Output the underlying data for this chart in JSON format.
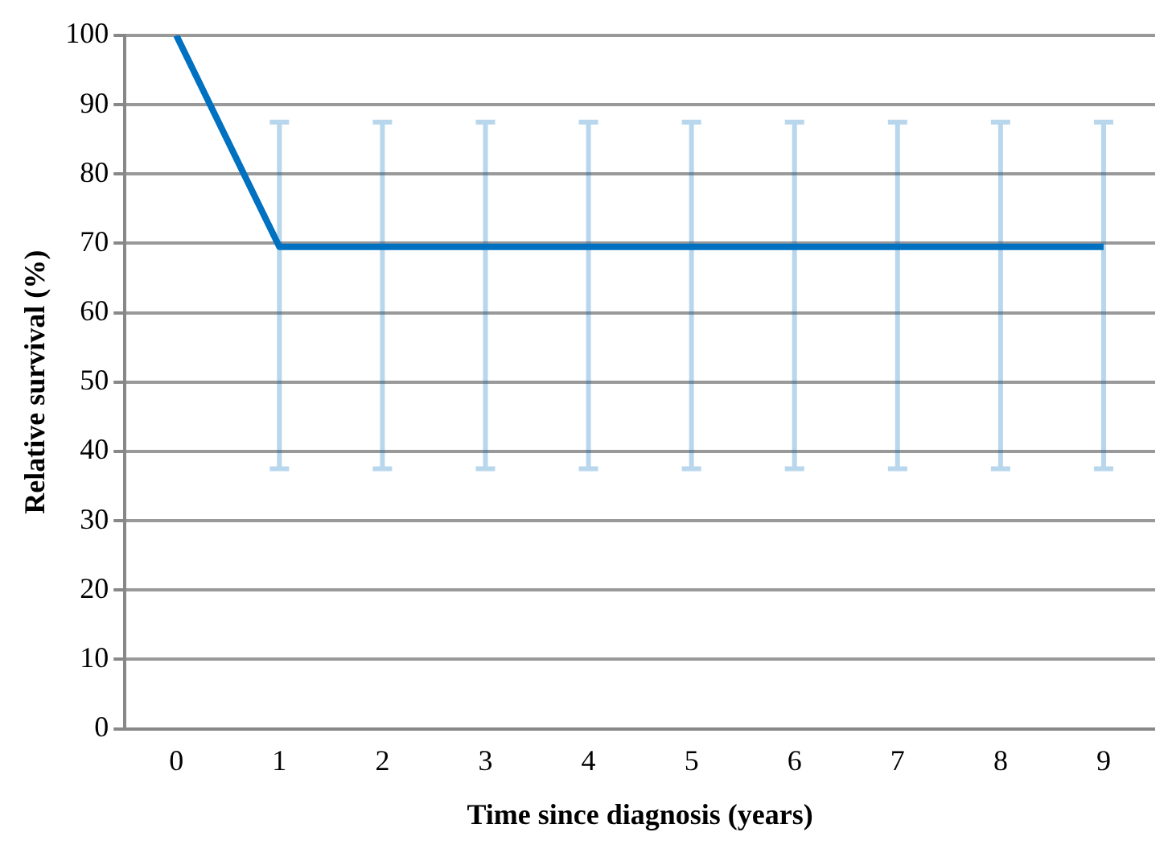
{
  "chart_data": {
    "type": "line",
    "xlabel": "Time since diagnosis (years)",
    "ylabel": "Relative survival (%)",
    "categories": [
      "0",
      "1",
      "2",
      "3",
      "4",
      "5",
      "6",
      "7",
      "8",
      "9"
    ],
    "series": [
      {
        "color": "#0070c0",
        "values": [
          100,
          69.5,
          69.5,
          69.5,
          69.5,
          69.5,
          69.5,
          69.5,
          69.5,
          69.5
        ],
        "errors": [
          null,
          [
            37.5,
            87.5
          ],
          [
            37.5,
            87.5
          ],
          [
            37.5,
            87.5
          ],
          [
            37.5,
            87.5
          ],
          [
            37.5,
            87.5
          ],
          [
            37.5,
            87.5
          ],
          [
            37.5,
            87.5
          ],
          [
            37.5,
            87.5
          ],
          [
            37.5,
            87.5
          ]
        ]
      }
    ],
    "ylim": [
      0,
      100
    ],
    "yticks": [
      0,
      10,
      20,
      30,
      40,
      50,
      60,
      70,
      80,
      90,
      100
    ],
    "grid": "y",
    "legend": false,
    "marker": "none",
    "line_style": "solid"
  }
}
